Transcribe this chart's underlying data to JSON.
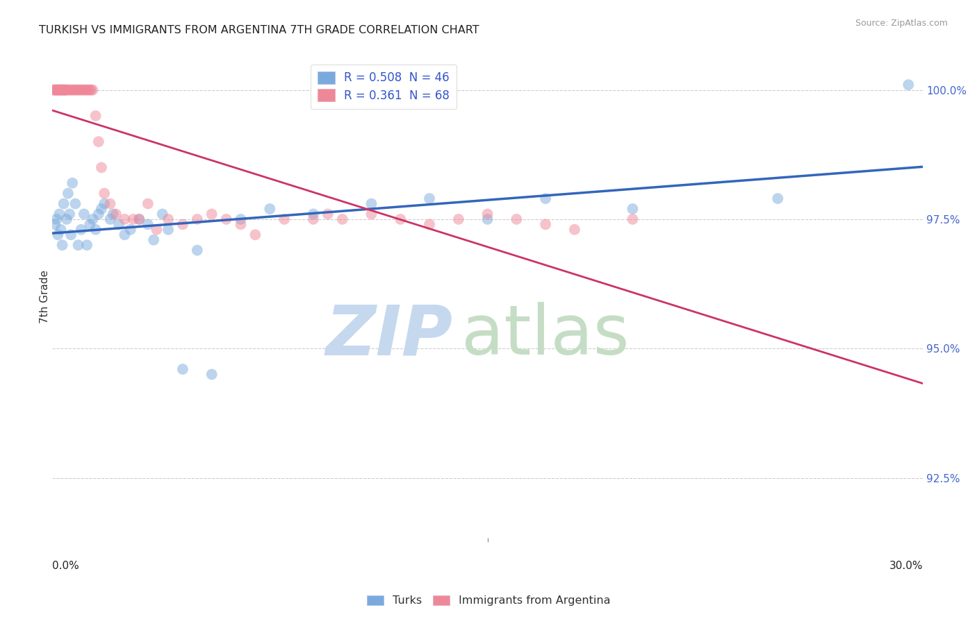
{
  "title": "TURKISH VS IMMIGRANTS FROM ARGENTINA 7TH GRADE CORRELATION CHART",
  "source": "Source: ZipAtlas.com",
  "ylabel": "7th Grade",
  "yticks": [
    92.5,
    95.0,
    97.5,
    100.0
  ],
  "ytick_labels": [
    "92.5%",
    "95.0%",
    "97.5%",
    "100.0%"
  ],
  "xmin": 0.0,
  "xmax": 30.0,
  "ymin": 91.3,
  "ymax": 100.7,
  "legend_turks": "Turks",
  "legend_arg": "Immigrants from Argentina",
  "R_turks": 0.508,
  "N_turks": 46,
  "R_arg": 0.361,
  "N_arg": 68,
  "turks_color": "#7aaadd",
  "arg_color": "#ee8899",
  "turks_x": [
    0.1,
    0.15,
    0.2,
    0.25,
    0.3,
    0.35,
    0.4,
    0.5,
    0.55,
    0.6,
    0.65,
    0.7,
    0.8,
    0.9,
    1.0,
    1.1,
    1.2,
    1.3,
    1.4,
    1.5,
    1.6,
    1.7,
    1.8,
    2.0,
    2.1,
    2.3,
    2.5,
    2.7,
    3.0,
    3.3,
    3.5,
    3.8,
    4.0,
    4.5,
    5.0,
    5.5,
    6.5,
    7.5,
    9.0,
    11.0,
    13.0,
    15.0,
    17.0,
    20.0,
    25.0,
    29.5
  ],
  "turks_y": [
    97.4,
    97.5,
    97.2,
    97.6,
    97.3,
    97.0,
    97.8,
    97.5,
    98.0,
    97.6,
    97.2,
    98.2,
    97.8,
    97.0,
    97.3,
    97.6,
    97.0,
    97.4,
    97.5,
    97.3,
    97.6,
    97.7,
    97.8,
    97.5,
    97.6,
    97.4,
    97.2,
    97.3,
    97.5,
    97.4,
    97.1,
    97.6,
    97.3,
    94.6,
    96.9,
    94.5,
    97.5,
    97.7,
    97.6,
    97.8,
    97.9,
    97.5,
    97.9,
    97.7,
    97.9,
    100.1
  ],
  "arg_x": [
    0.05,
    0.08,
    0.1,
    0.12,
    0.15,
    0.18,
    0.2,
    0.22,
    0.25,
    0.28,
    0.3,
    0.32,
    0.35,
    0.38,
    0.4,
    0.42,
    0.45,
    0.48,
    0.5,
    0.55,
    0.6,
    0.65,
    0.7,
    0.75,
    0.8,
    0.85,
    0.9,
    0.95,
    1.0,
    1.05,
    1.1,
    1.15,
    1.2,
    1.25,
    1.3,
    1.35,
    1.4,
    1.5,
    1.6,
    1.7,
    1.8,
    2.0,
    2.2,
    2.5,
    2.8,
    3.0,
    3.3,
    3.6,
    4.0,
    4.5,
    5.0,
    5.5,
    6.0,
    6.5,
    7.0,
    8.0,
    9.0,
    9.5,
    10.0,
    11.0,
    12.0,
    13.0,
    14.0,
    15.0,
    16.0,
    17.0,
    18.0,
    20.0
  ],
  "arg_y": [
    100.0,
    100.0,
    100.0,
    100.0,
    100.0,
    100.0,
    100.0,
    100.0,
    100.0,
    100.0,
    100.0,
    100.0,
    100.0,
    100.0,
    100.0,
    100.0,
    100.0,
    100.0,
    100.0,
    100.0,
    100.0,
    100.0,
    100.0,
    100.0,
    100.0,
    100.0,
    100.0,
    100.0,
    100.0,
    100.0,
    100.0,
    100.0,
    100.0,
    100.0,
    100.0,
    100.0,
    100.0,
    99.5,
    99.0,
    98.5,
    98.0,
    97.8,
    97.6,
    97.5,
    97.5,
    97.5,
    97.8,
    97.3,
    97.5,
    97.4,
    97.5,
    97.6,
    97.5,
    97.4,
    97.2,
    97.5,
    97.5,
    97.6,
    97.5,
    97.6,
    97.5,
    97.4,
    97.5,
    97.6,
    97.5,
    97.4,
    97.3,
    97.5
  ],
  "zip_color": "#c8d8f0",
  "atlas_color": "#c0d8c8"
}
